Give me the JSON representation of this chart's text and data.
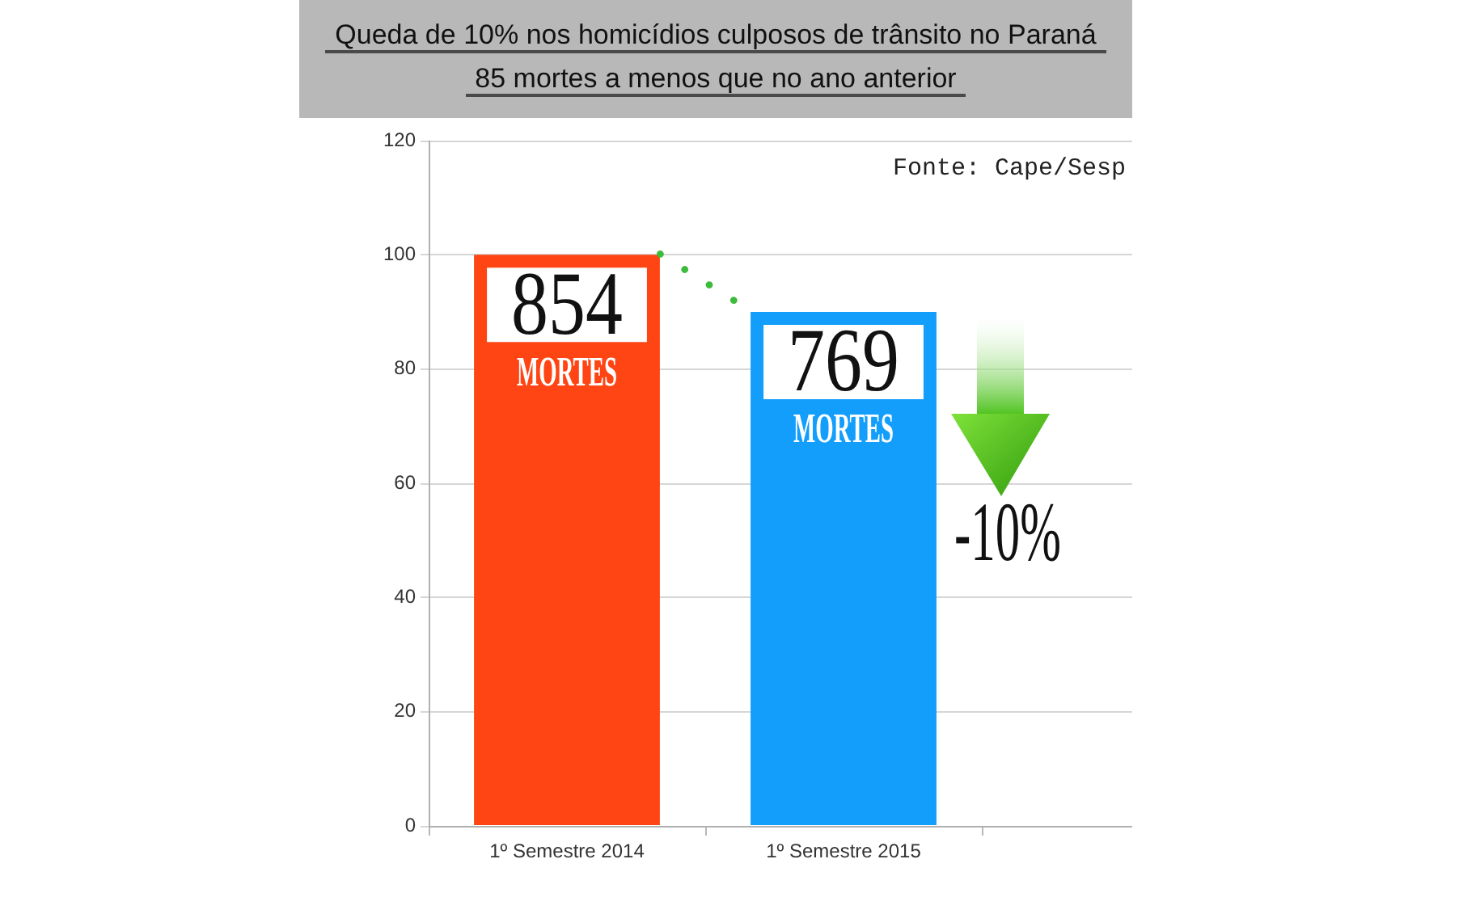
{
  "chart_data": {
    "type": "bar",
    "title": "Queda de 10% nos homicídios culposos de trânsito no Paraná",
    "subtitle": "85 mortes a menos que no ano anterior",
    "categories": [
      "1º Semestre 2014",
      "1º Semestre 2015",
      null
    ],
    "values": [
      100,
      90,
      null
    ],
    "colors": [
      "#fe4513",
      "#139efb",
      null
    ],
    "ylim": [
      0,
      120
    ],
    "yticks": [
      0,
      20,
      40,
      60,
      80,
      100,
      120
    ],
    "grid": "y",
    "annotations": [
      {
        "text": "854",
        "x": "1º Semestre 2014",
        "y": 100
      },
      {
        "text": "MORTES",
        "x": "1º Semestre 2014",
        "y": 100
      },
      {
        "text": "769",
        "x": "1º Semestre 2015",
        "y": 90
      },
      {
        "text": "MORTES",
        "x": "1º Semestre 2015",
        "y": 90
      },
      "-10%",
      "Fonte: Cape/Sesp"
    ]
  }
}
